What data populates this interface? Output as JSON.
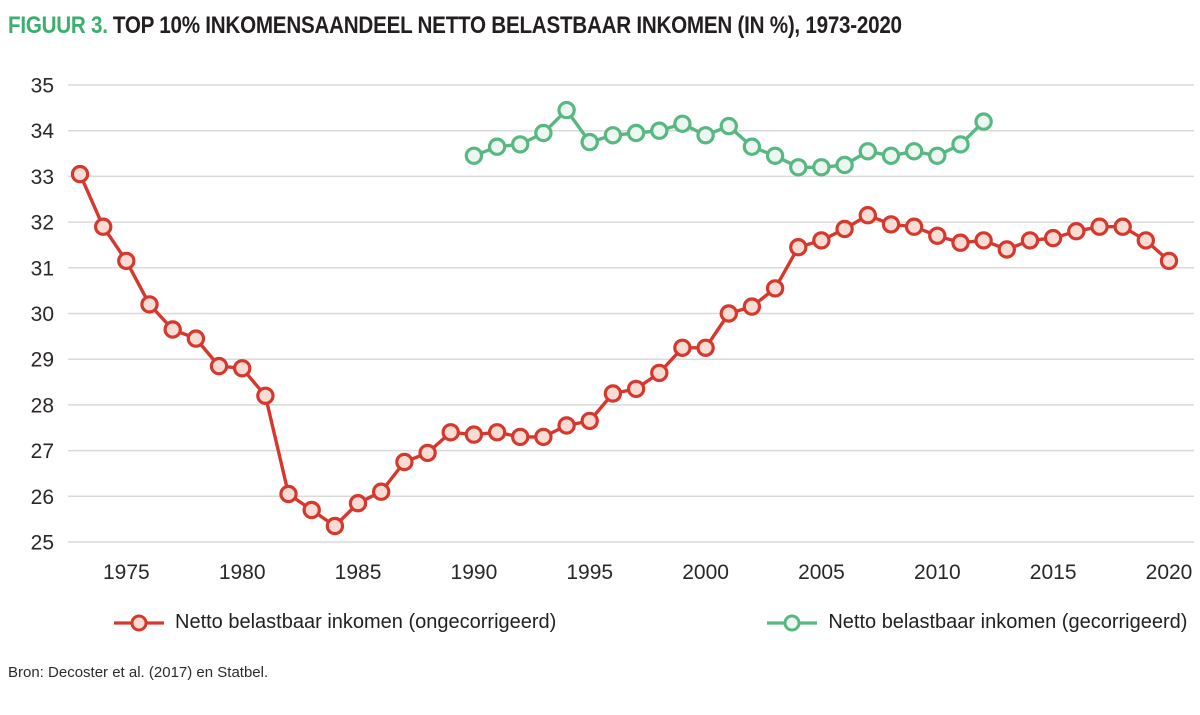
{
  "figure": {
    "label": "FIGUUR 3.",
    "title": "TOP 10% INKOMENSAANDEEL NETTO BELASTBAAR INKOMEN (IN %), 1973-2020"
  },
  "colors": {
    "title_accent": "#3caf6e",
    "series_red": "#d7382d",
    "series_red_fill": "#f9dcd4",
    "series_green": "#58b882",
    "series_green_fill": "#edf7f1",
    "grid": "#dadada",
    "tick_text": "#2b2728"
  },
  "legend": [
    {
      "id": "ongecorrigeerd",
      "label": "Netto belastbaar inkomen (ongecorrigeerd)",
      "color": "#d7382d",
      "marker_fill": "#f9dcd4"
    },
    {
      "id": "gecorrigeerd",
      "label": "Netto belastbaar inkomen (gecorrigeerd)",
      "color": "#58b882",
      "marker_fill": "#edf7f1"
    }
  ],
  "source": "Bron: Decoster et al. (2017) en Statbel.",
  "chart_data": {
    "type": "line",
    "title": "TOP 10% INKOMENSAANDEEL NETTO BELASTBAAR INKOMEN (IN %), 1973-2020",
    "xlabel": "",
    "ylabel": "",
    "xlim": [
      1973,
      2020
    ],
    "ylim": [
      25,
      35
    ],
    "x_ticks": [
      1975,
      1980,
      1985,
      1990,
      1995,
      2000,
      2005,
      2010,
      2015,
      2020
    ],
    "y_ticks": [
      25,
      26,
      27,
      28,
      29,
      30,
      31,
      32,
      33,
      34,
      35
    ],
    "grid": "horizontal",
    "legend_position": "bottom",
    "series": [
      {
        "id": "ongecorrigeerd",
        "name": "Netto belastbaar inkomen (ongecorrigeerd)",
        "color": "#d7382d",
        "marker_fill": "#f9dcd4",
        "x": [
          1973,
          1974,
          1975,
          1976,
          1977,
          1978,
          1979,
          1980,
          1981,
          1982,
          1983,
          1984,
          1985,
          1986,
          1987,
          1988,
          1989,
          1990,
          1991,
          1992,
          1993,
          1994,
          1995,
          1996,
          1997,
          1998,
          1999,
          2000,
          2001,
          2002,
          2003,
          2004,
          2005,
          2006,
          2007,
          2008,
          2009,
          2010,
          2011,
          2012,
          2013,
          2014,
          2015,
          2016,
          2017,
          2018,
          2019,
          2020
        ],
        "values": [
          33.05,
          31.9,
          31.15,
          30.2,
          29.65,
          29.45,
          28.85,
          28.8,
          28.2,
          26.05,
          25.7,
          25.35,
          25.85,
          26.1,
          26.75,
          26.95,
          27.4,
          27.35,
          27.4,
          27.3,
          27.3,
          27.55,
          27.65,
          28.25,
          28.35,
          28.7,
          29.25,
          29.25,
          30.0,
          30.15,
          30.55,
          31.45,
          31.6,
          31.85,
          32.15,
          31.95,
          31.9,
          31.7,
          31.55,
          31.6,
          31.4,
          31.6,
          31.65,
          31.8,
          31.9,
          31.9,
          31.6,
          31.15
        ]
      },
      {
        "id": "gecorrigeerd",
        "name": "Netto belastbaar inkomen (gecorrigeerd)",
        "color": "#58b882",
        "marker_fill": "#edf7f1",
        "x": [
          1990,
          1991,
          1992,
          1993,
          1994,
          1995,
          1996,
          1997,
          1998,
          1999,
          2000,
          2001,
          2002,
          2003,
          2004,
          2005,
          2006,
          2007,
          2008,
          2009,
          2010,
          2011,
          2012
        ],
        "values": [
          33.45,
          33.65,
          33.7,
          33.95,
          34.45,
          33.75,
          33.9,
          33.95,
          34.0,
          34.15,
          33.9,
          34.1,
          33.65,
          33.45,
          33.2,
          33.2,
          33.25,
          33.55,
          33.45,
          33.55,
          33.45,
          33.7,
          34.2
        ]
      }
    ]
  }
}
